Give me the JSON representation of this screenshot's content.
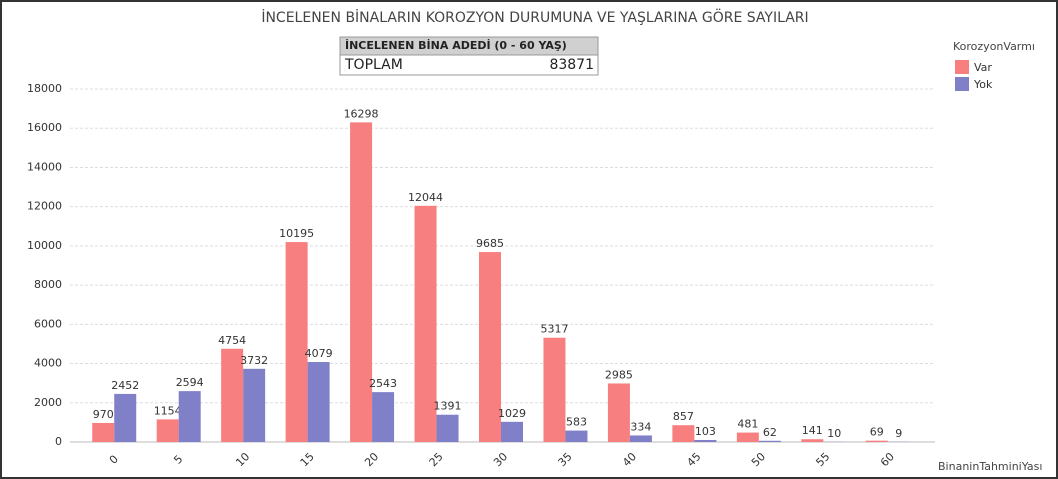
{
  "chart_data": {
    "type": "bar",
    "title": "İNCELENEN BİNALARIN KOROZYON DURUMUNA VE YAŞLARINA GÖRE SAYILARI",
    "categories": [
      "0",
      "5",
      "10",
      "15",
      "20",
      "25",
      "30",
      "35",
      "40",
      "45",
      "50",
      "55",
      "60"
    ],
    "series": [
      {
        "name": "Var",
        "color": "#f77f80",
        "values": [
          970,
          1154,
          4754,
          10195,
          16298,
          12044,
          9685,
          5317,
          2985,
          857,
          481,
          141,
          69
        ]
      },
      {
        "name": "Yok",
        "color": "#8080c8",
        "values": [
          2452,
          2594,
          3732,
          4079,
          2543,
          1391,
          1029,
          583,
          334,
          103,
          62,
          10,
          9
        ]
      }
    ],
    "legend_title": "KorozyonVarmı",
    "x_label": "BinaninTahminiYası",
    "ylim": [
      0,
      18000
    ],
    "yticks": [
      0,
      2000,
      4000,
      6000,
      8000,
      10000,
      12000,
      14000,
      16000,
      18000
    ],
    "grid": true,
    "legend": "right"
  },
  "summary_table": {
    "header": "İNCELENEN BİNA  ADEDİ (0 - 60 YAŞ)",
    "label": "TOPLAM",
    "value": 83871
  }
}
